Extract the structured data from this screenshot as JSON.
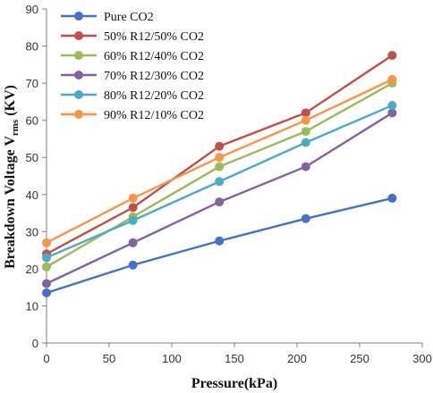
{
  "chart_data": {
    "type": "line",
    "xlabel": "Pressure(kPa)",
    "ylabel_main": "Breakdown Voltage V",
    "ylabel_sub": "rms",
    "ylabel_unit": " (KV)",
    "xlim": [
      0,
      300
    ],
    "ylim": [
      0,
      90
    ],
    "xticks": [
      0,
      50,
      100,
      150,
      200,
      250,
      300
    ],
    "yticks": [
      0,
      10,
      20,
      30,
      40,
      50,
      60,
      70,
      80,
      90
    ],
    "grid": false,
    "legend_position": "top-left",
    "x": [
      0,
      69,
      138,
      207,
      276
    ],
    "series": [
      {
        "name": "Pure CO2",
        "color": "#4472C4",
        "values": [
          13.5,
          21,
          27.5,
          33.5,
          39
        ]
      },
      {
        "name": "50% R12/50% CO2",
        "color": "#C0504D",
        "values": [
          24,
          36.5,
          53,
          62,
          77.5
        ]
      },
      {
        "name": "60% R12/40% CO2",
        "color": "#9BBB59",
        "values": [
          20.5,
          34,
          47.5,
          57,
          70
        ]
      },
      {
        "name": "70% R12/30% CO2",
        "color": "#8064A2",
        "values": [
          16,
          27,
          38,
          47.5,
          62
        ]
      },
      {
        "name": "80% R12/20% CO2",
        "color": "#4BACC6",
        "values": [
          23,
          33,
          43.5,
          54,
          64
        ]
      },
      {
        "name": "90% R12/10% CO2",
        "color": "#F79646",
        "values": [
          27,
          39,
          50,
          60,
          71
        ]
      }
    ]
  }
}
